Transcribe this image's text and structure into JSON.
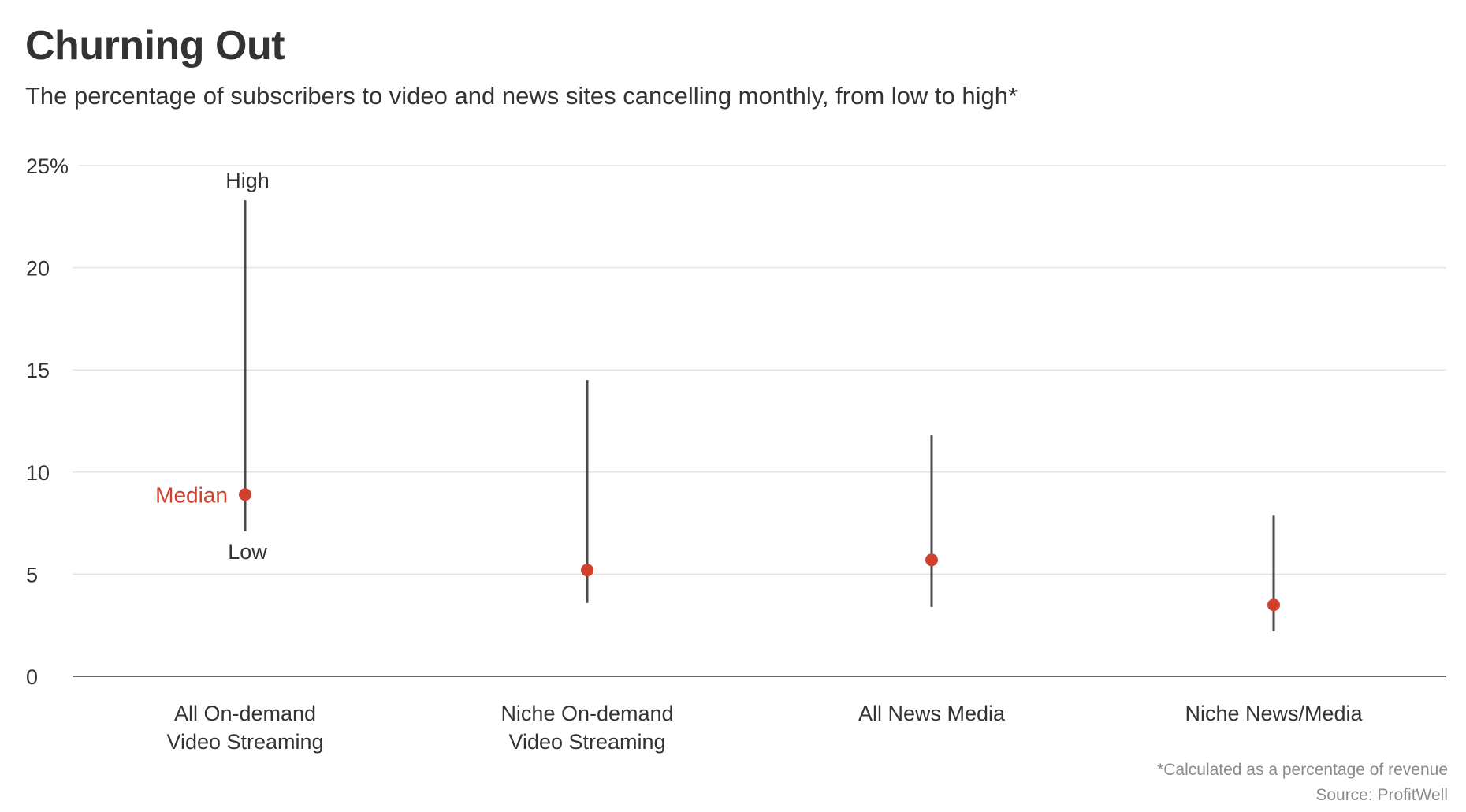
{
  "chart_data": {
    "type": "range-dot",
    "title": "Churning Out",
    "subtitle": "The percentage of subscribers to video and news sites cancelling monthly, from low to high*",
    "categories": [
      [
        "All On-demand",
        "Video Streaming"
      ],
      [
        "Niche On-demand",
        "Video Streaming"
      ],
      [
        "All News Media",
        ""
      ],
      [
        "Niche News/Media",
        ""
      ]
    ],
    "series": [
      {
        "name": "High",
        "values": [
          23.3,
          14.5,
          11.8,
          7.9
        ]
      },
      {
        "name": "Median",
        "values": [
          8.9,
          5.2,
          5.7,
          3.5
        ]
      },
      {
        "name": "Low",
        "values": [
          7.1,
          3.6,
          3.4,
          2.2
        ]
      }
    ],
    "annotations": {
      "high": "High",
      "median": "Median",
      "low": "Low"
    },
    "ylim": [
      0,
      25
    ],
    "yticks": [
      0,
      5,
      10,
      15,
      20,
      25
    ],
    "ytick_labels": [
      "0",
      "5",
      "10",
      "15",
      "20",
      "25%"
    ],
    "grid": true,
    "colors": {
      "range": "#4a4a4a",
      "median": "#d13f2d",
      "grid": "#e3e3e3",
      "axis": "#666666"
    },
    "footnote": "*Calculated as a percentage of revenue",
    "source": "Source: ProfitWell"
  }
}
